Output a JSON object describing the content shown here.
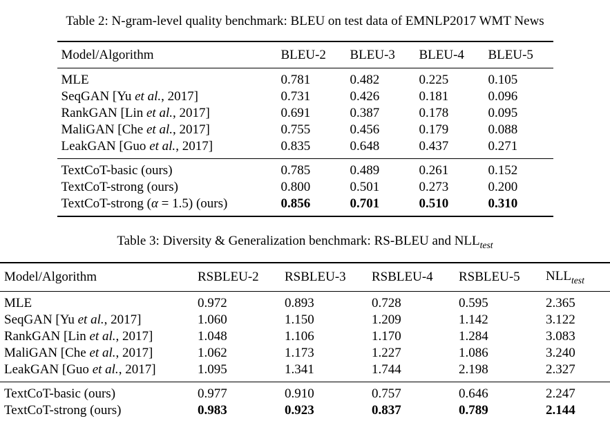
{
  "table2": {
    "caption": "Table 2: N-gram-level quality benchmark: BLEU on test data of EMNLP2017 WMT News",
    "headers": [
      {
        "label": "Model/Algorithm"
      },
      {
        "label": "BLEU-2"
      },
      {
        "label": "BLEU-3"
      },
      {
        "label": "BLEU-4"
      },
      {
        "label": "BLEU-5"
      }
    ],
    "baseline_rows": [
      {
        "model": "MLE",
        "values": [
          "0.781",
          "0.482",
          "0.225",
          "0.105"
        ],
        "bold_values": false
      },
      {
        "model": "SeqGAN [Yu et al., 2017]",
        "values": [
          "0.731",
          "0.426",
          "0.181",
          "0.096"
        ],
        "bold_values": false
      },
      {
        "model": "RankGAN [Lin et al., 2017]",
        "values": [
          "0.691",
          "0.387",
          "0.178",
          "0.095"
        ],
        "bold_values": false
      },
      {
        "model": "MaliGAN [Che et al., 2017]",
        "values": [
          "0.755",
          "0.456",
          "0.179",
          "0.088"
        ],
        "bold_values": false
      },
      {
        "model": "LeakGAN [Guo et al., 2017]",
        "values": [
          "0.835",
          "0.648",
          "0.437",
          "0.271"
        ],
        "bold_values": false
      }
    ],
    "ours_rows": [
      {
        "model": "TextCoT-basic (ours)",
        "values": [
          "0.785",
          "0.489",
          "0.261",
          "0.152"
        ],
        "bold_values": false
      },
      {
        "model": "TextCoT-strong (ours)",
        "values": [
          "0.800",
          "0.501",
          "0.273",
          "0.200"
        ],
        "bold_values": false
      },
      {
        "model": "TextCoT-strong (α = 1.5) (ours)",
        "values": [
          "0.856",
          "0.701",
          "0.510",
          "0.310"
        ],
        "bold_values": true
      }
    ]
  },
  "table3": {
    "caption": {
      "text": "Table 3: Diversity & Generalization benchmark: RS-BLEU and NLL",
      "sub": "test"
    },
    "headers": [
      {
        "label": "Model/Algorithm"
      },
      {
        "label": "RSBLEU-2"
      },
      {
        "label": "RSBLEU-3"
      },
      {
        "label": "RSBLEU-4"
      },
      {
        "label": "RSBLEU-5"
      },
      {
        "label": "NLL",
        "sub": "test"
      }
    ],
    "baseline_rows": [
      {
        "model": "MLE",
        "values": [
          "0.972",
          "0.893",
          "0.728",
          "0.595",
          "2.365"
        ],
        "bold_values": false
      },
      {
        "model": "SeqGAN [Yu et al., 2017]",
        "values": [
          "1.060",
          "1.150",
          "1.209",
          "1.142",
          "3.122"
        ],
        "bold_values": false
      },
      {
        "model": "RankGAN [Lin et al., 2017]",
        "values": [
          "1.048",
          "1.106",
          "1.170",
          "1.284",
          "3.083"
        ],
        "bold_values": false
      },
      {
        "model": "MaliGAN [Che et al., 2017]",
        "values": [
          "1.062",
          "1.173",
          "1.227",
          "1.086",
          "3.240"
        ],
        "bold_values": false
      },
      {
        "model": "LeakGAN [Guo et al., 2017]",
        "values": [
          "1.095",
          "1.341",
          "1.744",
          "2.198",
          "2.327"
        ],
        "bold_values": false
      }
    ],
    "ours_rows": [
      {
        "model": "TextCoT-basic (ours)",
        "values": [
          "0.977",
          "0.910",
          "0.757",
          "0.646",
          "2.247"
        ],
        "bold_values": false
      },
      {
        "model": "TextCoT-strong (ours)",
        "values": [
          "0.983",
          "0.923",
          "0.837",
          "0.789",
          "2.144"
        ],
        "bold_values": true
      }
    ]
  }
}
